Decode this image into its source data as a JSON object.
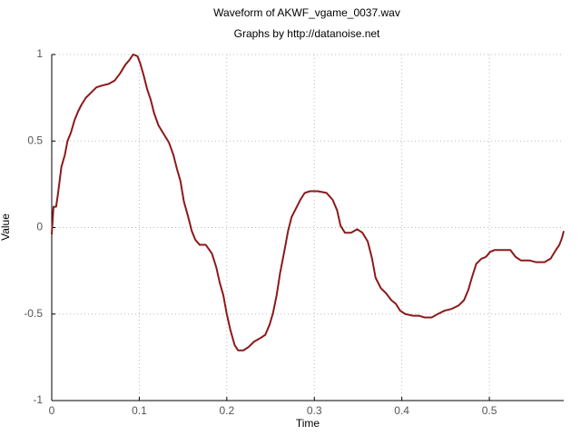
{
  "chart_data": {
    "type": "line",
    "title": "Waveform of AKWF_vgame_0037.wav",
    "subtitle": "Graphs by http://datanoise.net",
    "xlabel": "Time",
    "ylabel": "Value",
    "xlim": [
      0,
      0.585
    ],
    "ylim": [
      -1,
      1
    ],
    "xticks": [
      0,
      0.1,
      0.2,
      0.3,
      0.4,
      0.5
    ],
    "yticks": [
      -1,
      -0.5,
      0,
      0.5,
      1
    ],
    "grid": true,
    "x": [
      0,
      0.002,
      0.005,
      0.007,
      0.009,
      0.011,
      0.015,
      0.018,
      0.022,
      0.026,
      0.03,
      0.034,
      0.039,
      0.045,
      0.051,
      0.057,
      0.065,
      0.072,
      0.078,
      0.084,
      0.089,
      0.093,
      0.098,
      0.101,
      0.105,
      0.109,
      0.113,
      0.117,
      0.122,
      0.128,
      0.134,
      0.139,
      0.143,
      0.147,
      0.151,
      0.156,
      0.16,
      0.164,
      0.169,
      0.176,
      0.183,
      0.188,
      0.192,
      0.196,
      0.2,
      0.204,
      0.209,
      0.213,
      0.219,
      0.225,
      0.231,
      0.238,
      0.244,
      0.249,
      0.253,
      0.257,
      0.261,
      0.266,
      0.27,
      0.274,
      0.279,
      0.284,
      0.289,
      0.295,
      0.304,
      0.314,
      0.321,
      0.326,
      0.33,
      0.335,
      0.342,
      0.349,
      0.355,
      0.361,
      0.366,
      0.37,
      0.376,
      0.382,
      0.388,
      0.393,
      0.398,
      0.404,
      0.413,
      0.42,
      0.426,
      0.434,
      0.441,
      0.449,
      0.457,
      0.465,
      0.471,
      0.476,
      0.48,
      0.485,
      0.491,
      0.496,
      0.501,
      0.506,
      0.517,
      0.524,
      0.53,
      0.536,
      0.546,
      0.553,
      0.563,
      0.57,
      0.576,
      0.58,
      0.583,
      0.585
    ],
    "series": [
      {
        "color": "#8b1a1a",
        "values": [
          -0.04,
          0.12,
          0.12,
          0.19,
          0.27,
          0.35,
          0.42,
          0.5,
          0.55,
          0.62,
          0.67,
          0.71,
          0.75,
          0.78,
          0.81,
          0.82,
          0.83,
          0.85,
          0.89,
          0.94,
          0.97,
          1.0,
          0.99,
          0.95,
          0.88,
          0.8,
          0.74,
          0.66,
          0.59,
          0.54,
          0.49,
          0.42,
          0.34,
          0.27,
          0.15,
          0.06,
          -0.02,
          -0.07,
          -0.1,
          -0.1,
          -0.15,
          -0.23,
          -0.32,
          -0.39,
          -0.5,
          -0.59,
          -0.68,
          -0.71,
          -0.71,
          -0.69,
          -0.66,
          -0.64,
          -0.62,
          -0.56,
          -0.49,
          -0.39,
          -0.26,
          -0.13,
          -0.02,
          0.06,
          0.11,
          0.16,
          0.2,
          0.21,
          0.21,
          0.2,
          0.16,
          0.1,
          0.01,
          -0.03,
          -0.03,
          -0.01,
          -0.03,
          -0.08,
          -0.18,
          -0.29,
          -0.35,
          -0.38,
          -0.42,
          -0.44,
          -0.48,
          -0.5,
          -0.51,
          -0.51,
          -0.52,
          -0.52,
          -0.5,
          -0.48,
          -0.47,
          -0.45,
          -0.42,
          -0.36,
          -0.29,
          -0.21,
          -0.18,
          -0.17,
          -0.14,
          -0.13,
          -0.13,
          -0.13,
          -0.17,
          -0.19,
          -0.19,
          -0.2,
          -0.2,
          -0.18,
          -0.13,
          -0.1,
          -0.06,
          -0.02
        ]
      }
    ]
  }
}
